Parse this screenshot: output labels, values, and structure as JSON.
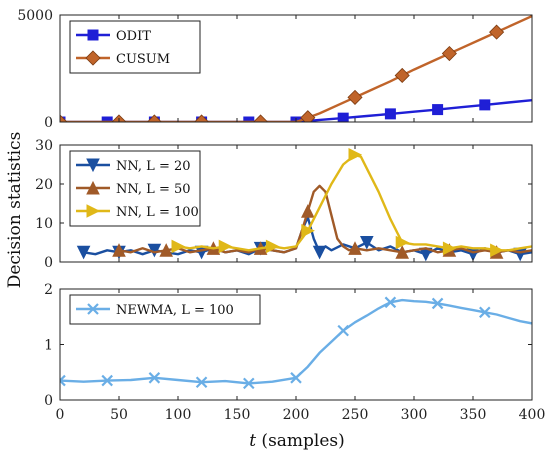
{
  "figure": {
    "ylabel": "Decision statistics",
    "xlabel_var": "t",
    "xlabel_rest": " (samples)"
  },
  "chart_data": [
    {
      "type": "line",
      "xlim": [
        0,
        400
      ],
      "ylim": [
        0,
        5000
      ],
      "xticks": [
        0,
        50,
        100,
        150,
        200,
        250,
        300,
        350,
        400
      ],
      "yticks": [
        0,
        5000
      ],
      "grid": false,
      "legend_position": "top-left",
      "series": [
        {
          "name": "ODIT",
          "color": "#1f1fd6",
          "marker": "square",
          "x": [
            0,
            20,
            40,
            60,
            80,
            100,
            120,
            140,
            160,
            180,
            200,
            220,
            240,
            260,
            280,
            300,
            320,
            340,
            360,
            380,
            400
          ],
          "y": [
            0,
            0,
            0,
            0,
            0,
            0,
            0,
            0,
            0,
            0,
            0,
            100,
            180,
            280,
            380,
            480,
            580,
            690,
            800,
            910,
            1020
          ],
          "marker_x": [
            0,
            40,
            80,
            120,
            160,
            200,
            240,
            280,
            320,
            360
          ]
        },
        {
          "name": "CUSUM",
          "color": "#c0642a",
          "marker": "diamond",
          "x": [
            0,
            20,
            40,
            60,
            80,
            100,
            120,
            140,
            160,
            180,
            200,
            210,
            220,
            240,
            260,
            280,
            300,
            320,
            340,
            360,
            380,
            400
          ],
          "y": [
            0,
            0,
            0,
            0,
            0,
            0,
            0,
            0,
            0,
            0,
            0,
            200,
            400,
            900,
            1400,
            1900,
            2450,
            2950,
            3450,
            3950,
            4450,
            4950
          ],
          "marker_x": [
            0,
            50,
            80,
            120,
            170,
            210,
            250,
            290,
            330,
            370
          ]
        }
      ]
    },
    {
      "type": "line",
      "xlim": [
        0,
        400
      ],
      "ylim": [
        0,
        30
      ],
      "xticks": [
        0,
        50,
        100,
        150,
        200,
        250,
        300,
        350,
        400
      ],
      "yticks": [
        0,
        10,
        20,
        30
      ],
      "grid": false,
      "legend_position": "top-left",
      "series": [
        {
          "name": "NN, L = 20",
          "color": "#1a4fa0",
          "marker": "triangle-down",
          "x": [
            20,
            30,
            40,
            50,
            60,
            70,
            80,
            90,
            100,
            110,
            120,
            130,
            140,
            150,
            160,
            170,
            180,
            190,
            200,
            205,
            210,
            215,
            220,
            225,
            230,
            240,
            250,
            260,
            270,
            280,
            290,
            300,
            310,
            320,
            330,
            340,
            350,
            360,
            370,
            380,
            390,
            400
          ],
          "y": [
            2.5,
            2.0,
            3.0,
            2.5,
            3.0,
            2.0,
            3.0,
            2.5,
            2.0,
            3.0,
            2.5,
            3.5,
            2.5,
            3.0,
            2.0,
            3.5,
            3.0,
            2.5,
            3.5,
            8.0,
            11.5,
            6.0,
            2.5,
            4.0,
            3.0,
            4.5,
            3.5,
            5.0,
            3.0,
            4.0,
            2.5,
            3.0,
            2.0,
            3.5,
            2.5,
            3.0,
            2.0,
            3.5,
            2.5,
            3.0,
            2.0,
            2.5
          ],
          "marker_x": [
            20,
            50,
            80,
            120,
            170,
            220,
            260,
            310,
            350,
            390
          ]
        },
        {
          "name": "NN, L = 50",
          "color": "#a05a28",
          "marker": "triangle-up",
          "x": [
            50,
            60,
            70,
            80,
            90,
            100,
            110,
            120,
            130,
            140,
            150,
            160,
            170,
            180,
            190,
            200,
            205,
            210,
            215,
            220,
            225,
            230,
            235,
            240,
            245,
            250,
            260,
            270,
            280,
            290,
            300,
            310,
            320,
            330,
            340,
            350,
            360,
            370,
            380,
            390,
            400
          ],
          "y": [
            3.0,
            2.5,
            3.5,
            2.5,
            3.0,
            3.5,
            2.5,
            3.0,
            3.5,
            2.5,
            3.0,
            2.5,
            3.5,
            3.0,
            2.5,
            3.5,
            8.0,
            13.0,
            18.0,
            19.5,
            18.0,
            12.0,
            6.0,
            4.0,
            3.0,
            3.5,
            3.0,
            3.5,
            3.0,
            2.5,
            3.0,
            3.5,
            2.5,
            3.0,
            3.5,
            2.5,
            3.0,
            2.5,
            3.0,
            2.5,
            3.0
          ],
          "marker_x": [
            50,
            90,
            130,
            170,
            210,
            250,
            290,
            330,
            370
          ]
        },
        {
          "name": "NN, L = 100",
          "color": "#e0b818",
          "marker": "triangle-right",
          "x": [
            100,
            110,
            120,
            130,
            140,
            150,
            160,
            170,
            180,
            190,
            200,
            210,
            220,
            230,
            240,
            250,
            255,
            260,
            270,
            280,
            290,
            300,
            310,
            320,
            330,
            340,
            350,
            360,
            370,
            380,
            390,
            400
          ],
          "y": [
            4.0,
            3.5,
            4.0,
            3.5,
            4.0,
            3.5,
            3.0,
            3.5,
            4.0,
            3.5,
            4.0,
            8.0,
            14.0,
            20.0,
            25.0,
            27.5,
            27.0,
            24.0,
            18.0,
            11.0,
            5.0,
            4.5,
            4.5,
            4.0,
            3.5,
            4.0,
            3.5,
            3.5,
            3.0,
            3.0,
            3.5,
            4.0
          ],
          "marker_x": [
            100,
            140,
            180,
            210,
            250,
            290,
            330,
            370
          ]
        }
      ]
    },
    {
      "type": "line",
      "xlim": [
        0,
        400
      ],
      "ylim": [
        0,
        2
      ],
      "xticks": [
        0,
        50,
        100,
        150,
        200,
        250,
        300,
        350,
        400
      ],
      "yticks": [
        0,
        1,
        2
      ],
      "grid": false,
      "legend_position": "top-left",
      "series": [
        {
          "name": "NEWMA, L = 100",
          "color": "#6aaee6",
          "marker": "x",
          "x": [
            0,
            20,
            40,
            60,
            80,
            100,
            120,
            140,
            160,
            180,
            200,
            210,
            220,
            230,
            240,
            250,
            260,
            270,
            280,
            290,
            300,
            310,
            320,
            330,
            340,
            350,
            360,
            370,
            380,
            390,
            400
          ],
          "y": [
            0.35,
            0.33,
            0.35,
            0.36,
            0.4,
            0.36,
            0.32,
            0.34,
            0.3,
            0.33,
            0.4,
            0.6,
            0.85,
            1.05,
            1.25,
            1.4,
            1.52,
            1.65,
            1.76,
            1.8,
            1.78,
            1.77,
            1.74,
            1.7,
            1.66,
            1.62,
            1.58,
            1.54,
            1.48,
            1.42,
            1.38
          ],
          "marker_x": [
            0,
            40,
            80,
            120,
            160,
            200,
            240,
            280,
            320,
            360
          ]
        }
      ]
    }
  ]
}
